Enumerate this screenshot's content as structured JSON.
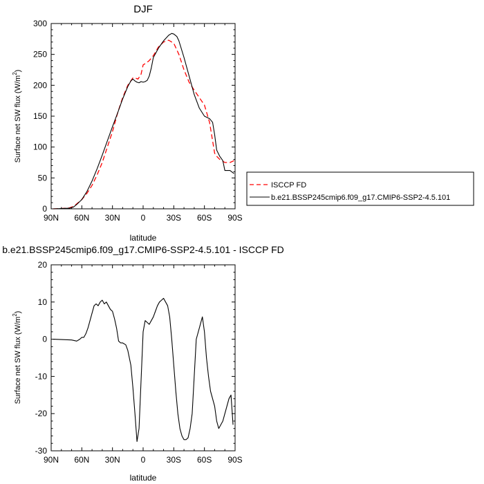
{
  "chart_data": [
    {
      "type": "line",
      "title": "DJF",
      "xlabel": "latitude",
      "ylabel": "Surface net SW flux (W/m",
      "ylabel_sup": "2",
      "ylabel_close": ")",
      "xlim": [
        90,
        -90
      ],
      "ylim": [
        0,
        300
      ],
      "xticks": [
        90,
        60,
        30,
        0,
        -30,
        -60,
        -90
      ],
      "xticklabels": [
        "90N",
        "60N",
        "30N",
        "0",
        "30S",
        "60S",
        "90S"
      ],
      "yticks": [
        0,
        50,
        100,
        150,
        200,
        250,
        300
      ],
      "yticklabels": [
        "0",
        "50",
        "100",
        "150",
        "200",
        "250",
        "300"
      ],
      "grid": false,
      "legend_position": "right",
      "series": [
        {
          "name": "ISCCP FD",
          "color": "#ff0000",
          "dash": "dashed",
          "x": [
            88,
            80,
            72,
            68,
            65,
            60,
            55,
            50,
            45,
            40,
            35,
            30,
            25,
            20,
            15,
            10,
            8,
            5,
            2,
            0,
            -3,
            -6,
            -10,
            -15,
            -20,
            -25,
            -30,
            -35,
            -40,
            -45,
            -50,
            -55,
            -60,
            -65,
            -70,
            -72,
            -75,
            -80,
            -85,
            -89
          ],
          "y": [
            0,
            0.5,
            1.5,
            4,
            8,
            15,
            25,
            38,
            55,
            75,
            100,
            125,
            155,
            180,
            200,
            212,
            212,
            210,
            218,
            233,
            236,
            240,
            248,
            262,
            270,
            273,
            268,
            250,
            225,
            205,
            192,
            180,
            168,
            140,
            90,
            85,
            80,
            75,
            75,
            78
          ]
        },
        {
          "name": "b.e21.BSSP245cmip6.f09_g17.CMIP6-SSP2-4.5.101",
          "color": "#000000",
          "dash": "solid",
          "x": [
            88,
            80,
            72,
            68,
            65,
            60,
            55,
            50,
            45,
            40,
            35,
            30,
            25,
            20,
            15,
            12,
            10,
            8,
            6,
            4,
            2,
            0,
            -2,
            -4,
            -6,
            -8,
            -10,
            -15,
            -20,
            -25,
            -28,
            -30,
            -33,
            -35,
            -40,
            -45,
            -50,
            -55,
            -60,
            -65,
            -68,
            -70,
            -72,
            -75,
            -78,
            -80,
            -85,
            -89
          ],
          "y": [
            0,
            0.5,
            1,
            3,
            7,
            15,
            28,
            45,
            65,
            87,
            110,
            133,
            155,
            178,
            198,
            207,
            210,
            207,
            205,
            204,
            206,
            205,
            206,
            208,
            215,
            228,
            245,
            260,
            272,
            281,
            284,
            283,
            279,
            272,
            245,
            215,
            185,
            163,
            150,
            146,
            140,
            120,
            95,
            85,
            78,
            62,
            62,
            57
          ]
        }
      ]
    },
    {
      "type": "line",
      "title": "b.e21.BSSP245cmip6.f09_g17.CMIP6-SSP2-4.5.101 - ISCCP FD",
      "xlabel": "latitude",
      "ylabel": "Surface net SW flux (W/m",
      "ylabel_sup": "2",
      "ylabel_close": ")",
      "xlim": [
        90,
        -90
      ],
      "ylim": [
        -30,
        20
      ],
      "xticks": [
        90,
        60,
        30,
        0,
        -30,
        -60,
        -90
      ],
      "xticklabels": [
        "90N",
        "60N",
        "30N",
        "0",
        "30S",
        "60S",
        "90S"
      ],
      "yticks": [
        -30,
        -20,
        -10,
        0,
        10,
        20
      ],
      "yticklabels": [
        "-30",
        "-20",
        "-10",
        "0",
        "10",
        "20"
      ],
      "grid": false,
      "series": [
        {
          "name": "",
          "color": "#000000",
          "dash": "solid",
          "x": [
            88,
            70,
            65,
            62,
            60,
            58,
            56,
            54,
            52,
            50,
            48,
            46,
            44,
            42,
            40,
            38,
            36,
            34,
            32,
            30,
            28,
            26,
            24,
            22,
            20,
            17,
            15,
            12,
            10,
            8,
            6,
            4,
            2,
            0,
            -2,
            -4,
            -6,
            -8,
            -10,
            -12,
            -14,
            -16,
            -18,
            -20,
            -22,
            -24,
            -26,
            -28,
            -30,
            -32,
            -34,
            -36,
            -38,
            -40,
            -42,
            -44,
            -46,
            -48,
            -50,
            -52,
            -54,
            -56,
            -58,
            -60,
            -62,
            -64,
            -66,
            -68,
            -70,
            -72,
            -74,
            -76,
            -78,
            -80,
            -82,
            -84,
            -86,
            -88
          ],
          "y": [
            0,
            -0.2,
            -0.5,
            0,
            0.5,
            0.5,
            1.5,
            3,
            5,
            7,
            9,
            9.5,
            9,
            10,
            10.5,
            9.5,
            10,
            9,
            8,
            7.5,
            5.5,
            3,
            -0.5,
            -1,
            -1,
            -1.5,
            -3,
            -7,
            -13,
            -20,
            -27.5,
            -24,
            -11,
            2,
            5,
            4.5,
            4,
            5,
            6,
            7.5,
            9,
            10,
            10.5,
            11,
            10,
            9,
            6,
            0,
            -7,
            -14,
            -20,
            -24,
            -26,
            -27,
            -27,
            -26.5,
            -24,
            -20,
            -10,
            0,
            2,
            4,
            6,
            2,
            -5,
            -10,
            -14,
            -16,
            -18,
            -22,
            -24,
            -23,
            -22,
            -20,
            -18,
            -16,
            -15,
            -23
          ]
        }
      ]
    }
  ]
}
